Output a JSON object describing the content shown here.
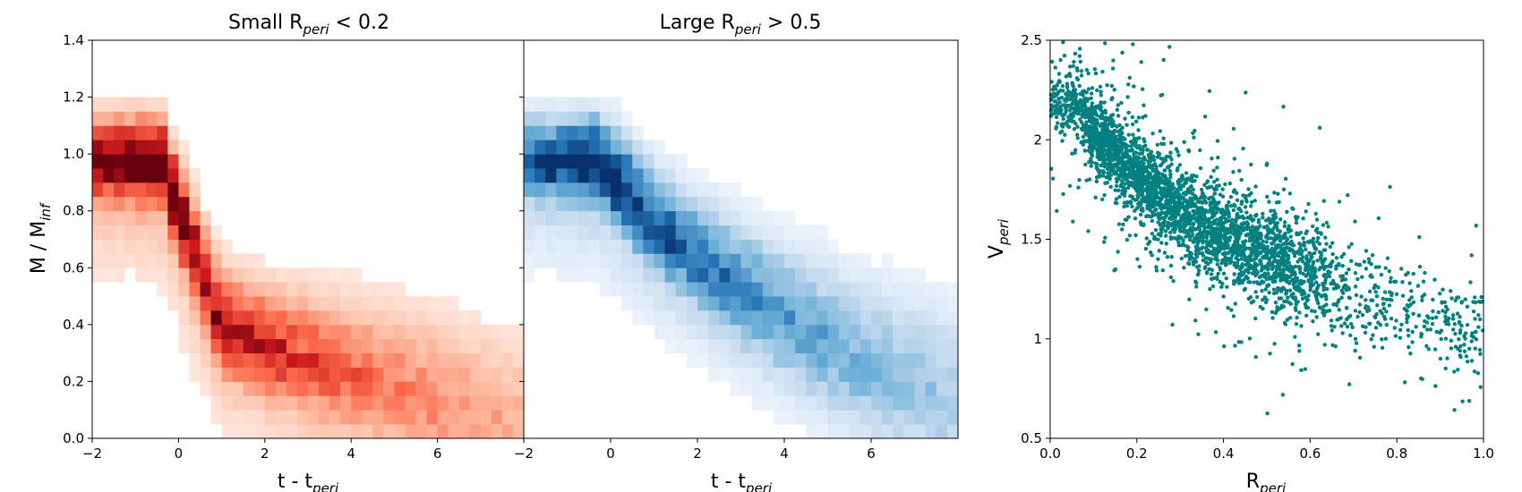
{
  "chart_data": [
    {
      "type": "heatmap",
      "title": "Small R",
      "title_sub": "peri",
      "title_tail": " < 0.2",
      "xlabel": "t - t",
      "xlabel_sub": "peri",
      "ylabel": "M / M",
      "ylabel_sub": "inf",
      "xlim": [
        -2,
        8
      ],
      "ylim": [
        0,
        1.4
      ],
      "xticks": [
        "−2",
        "0",
        "2",
        "4",
        "6"
      ],
      "xtick_values": [
        -2,
        0,
        2,
        4,
        6
      ],
      "yticks": [
        "0.0",
        "0.2",
        "0.4",
        "0.6",
        "0.8",
        "1.0",
        "1.2",
        "1.4"
      ],
      "ytick_values": [
        0,
        0.2,
        0.4,
        0.6,
        0.8,
        1.0,
        1.2,
        1.4
      ],
      "colormap": [
        "#fff5f0",
        "#fcbba1",
        "#fb6a4a",
        "#cb181d",
        "#67000d"
      ],
      "bin_width": 0.25,
      "bin_height": 0.05,
      "ridge": [
        [
          -2,
          1.0
        ],
        [
          -0.4,
          1.0
        ],
        [
          0.3,
          0.7
        ],
        [
          1.0,
          0.42
        ],
        [
          2.0,
          0.35
        ],
        [
          4.0,
          0.25
        ],
        [
          6.0,
          0.15
        ],
        [
          8.0,
          0.05
        ]
      ],
      "ridge_intensity": [
        0.75,
        0.95,
        0.8,
        0.65,
        0.55,
        0.4,
        0.3,
        0.2
      ],
      "x_cut": 8.0
    },
    {
      "type": "heatmap",
      "title": "Large R",
      "title_sub": "peri",
      "title_tail": " > 0.5",
      "xlabel": "t - t",
      "xlabel_sub": "peri",
      "xlim": [
        -2,
        8
      ],
      "ylim": [
        0,
        1.4
      ],
      "xticks": [
        "−2",
        "0",
        "2",
        "4",
        "6"
      ],
      "xtick_values": [
        -2,
        0,
        2,
        4,
        6
      ],
      "colormap": [
        "#f7fbff",
        "#c6dbef",
        "#6baed6",
        "#2171b5",
        "#08306b"
      ],
      "bin_width": 0.25,
      "bin_height": 0.05,
      "ridge": [
        [
          -2,
          1.0
        ],
        [
          -0.3,
          1.0
        ],
        [
          1.0,
          0.78
        ],
        [
          2.5,
          0.6
        ],
        [
          4.0,
          0.45
        ],
        [
          6.0,
          0.28
        ],
        [
          8.0,
          0.15
        ]
      ],
      "ridge_intensity": [
        0.7,
        0.95,
        0.7,
        0.55,
        0.45,
        0.35,
        0.25
      ],
      "x_cut": 8.0
    },
    {
      "type": "scatter",
      "xlabel": "R",
      "xlabel_sub": "peri",
      "ylabel": "V",
      "ylabel_sub": "peri",
      "xlim": [
        0,
        1.0
      ],
      "ylim": [
        0.5,
        2.5
      ],
      "xticks": [
        "0.0",
        "0.2",
        "0.4",
        "0.6",
        "0.8",
        "1.0"
      ],
      "xtick_values": [
        0,
        0.2,
        0.4,
        0.6,
        0.8,
        1.0
      ],
      "yticks": [
        "0.5",
        "1",
        "1.5",
        "2",
        "2.5"
      ],
      "ytick_values": [
        0.5,
        1.0,
        1.5,
        2.0,
        2.5
      ],
      "color": "#008080",
      "trend": [
        [
          0.05,
          2.2
        ],
        [
          0.1,
          2.05
        ],
        [
          0.2,
          1.82
        ],
        [
          0.3,
          1.65
        ],
        [
          0.4,
          1.52
        ],
        [
          0.5,
          1.42
        ],
        [
          0.6,
          1.32
        ],
        [
          0.7,
          1.22
        ],
        [
          0.8,
          1.14
        ],
        [
          0.9,
          1.08
        ],
        [
          1.0,
          1.02
        ]
      ],
      "n_points": 3500
    }
  ]
}
